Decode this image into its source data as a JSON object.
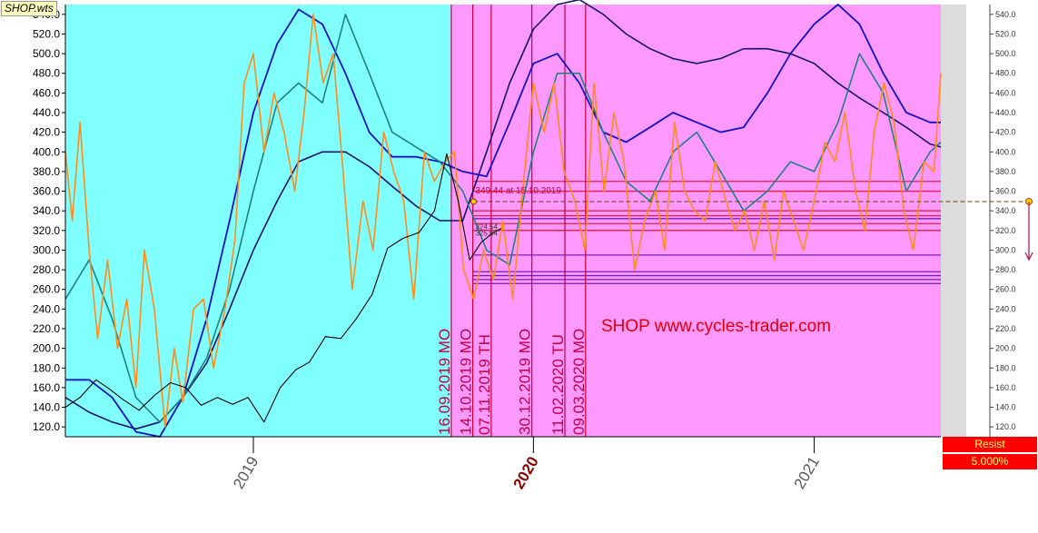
{
  "file_label": "SHOP.wts",
  "watermark": "SHOP www.cycles-trader.com",
  "resist_label": "Resist",
  "resist_value": "5.000%",
  "price_marker": "349.44 at 15.10.2019",
  "small_labels": [
    "324.54",
    "325.64"
  ],
  "colors": {
    "past_bg": "#80ffff",
    "future_bg": "#ff99ff",
    "price": "#000000",
    "cycle_orange": "#ff8c1a",
    "cycle_teal": "#208080",
    "cycle_blue": "#1010c8",
    "cycle_navy": "#101070",
    "event_line": "#c00040",
    "level_red": "#e0204a",
    "level_purple": "#7020c0",
    "resist": "#ff0000"
  },
  "chart_data": {
    "type": "line",
    "title": "",
    "xlabel": "",
    "ylabel": "",
    "ylim": [
      110,
      550
    ],
    "xlim": [
      "2018-05-01",
      "2021-06-15"
    ],
    "grid": false,
    "yticks": [
      120,
      140,
      160,
      180,
      200,
      220,
      240,
      260,
      280,
      300,
      320,
      340,
      360,
      380,
      400,
      420,
      440,
      460,
      480,
      500,
      520,
      540
    ],
    "ytick_labels": [
      "120.0",
      "140.0",
      "160.0",
      "180.0",
      "200.0",
      "220.0",
      "240.0",
      "260.0",
      "280.0",
      "300.0",
      "320.0",
      "340.0",
      "360.0",
      "380.0",
      "400.0",
      "420.0",
      "440.0",
      "460.0",
      "480.0",
      "500.0",
      "520.0",
      "540.0"
    ],
    "right_ytick_labels": [
      "120.0",
      "140.0",
      "160.0",
      "180.0",
      "200.0",
      "220.0",
      "240.0",
      "260.0",
      "280.0",
      "300.0",
      "320.0",
      "340.0",
      "360.0",
      "380.0",
      "400.0",
      "420.0",
      "440.0",
      "460.0",
      "480.0",
      "500.0",
      "520.0",
      "540.0"
    ],
    "xticks": [
      {
        "date": "2019-01-01",
        "label": "2019",
        "highlight": false
      },
      {
        "date": "2020-01-01",
        "label": "2020",
        "highlight": true
      },
      {
        "date": "2021-01-01",
        "label": "2021",
        "highlight": false
      }
    ],
    "forecast_start": "2019-09-16",
    "event_lines": [
      {
        "date": "2019-09-16",
        "label": "16.09.2019 MO"
      },
      {
        "date": "2019-10-14",
        "label": "14.10.2019 MO"
      },
      {
        "date": "2019-11-07",
        "label": "07.11.2019 TH"
      },
      {
        "date": "2019-12-30",
        "label": "30.12.2019 MO"
      },
      {
        "date": "2020-02-11",
        "label": "11.02.2020 TU"
      },
      {
        "date": "2020-03-09",
        "label": "09.03.2020 MO"
      }
    ],
    "levels_red": [
      370,
      360,
      340,
      335,
      327,
      320
    ],
    "levels_purple": [
      332,
      295,
      278,
      274,
      270,
      266
    ],
    "price_marker": {
      "date": "2019-10-15",
      "value": 349.44
    },
    "price_series": {
      "name": "",
      "x": [
        "2018-05-01",
        "2018-05-20",
        "2018-06-10",
        "2018-06-25",
        "2018-07-15",
        "2018-08-05",
        "2018-08-25",
        "2018-09-15",
        "2018-10-05",
        "2018-10-25",
        "2018-11-15",
        "2018-12-05",
        "2018-12-25",
        "2019-01-15",
        "2019-02-05",
        "2019-02-25",
        "2019-03-15",
        "2019-04-05",
        "2019-04-25",
        "2019-05-15",
        "2019-06-05",
        "2019-06-25",
        "2019-07-15",
        "2019-08-05",
        "2019-08-25",
        "2019-09-10",
        "2019-09-25",
        "2019-10-10",
        "2019-10-25",
        "2019-11-10",
        "2019-11-20"
      ],
      "values": [
        140,
        150,
        168,
        160,
        148,
        137,
        152,
        165,
        160,
        142,
        150,
        143,
        150,
        125,
        160,
        178,
        186,
        212,
        210,
        230,
        255,
        302,
        312,
        318,
        340,
        398,
        350,
        290,
        308,
        318,
        322
      ]
    },
    "cycle_orange": {
      "name": "",
      "x": [
        "2018-05-01",
        "2018-05-10",
        "2018-05-20",
        "2018-06-01",
        "2018-06-12",
        "2018-06-25",
        "2018-07-08",
        "2018-07-20",
        "2018-08-01",
        "2018-08-12",
        "2018-08-25",
        "2018-09-08",
        "2018-09-20",
        "2018-10-01",
        "2018-10-15",
        "2018-10-28",
        "2018-11-10",
        "2018-11-25",
        "2018-12-08",
        "2018-12-20",
        "2019-01-01",
        "2019-01-15",
        "2019-01-28",
        "2019-02-10",
        "2019-02-24",
        "2019-03-08",
        "2019-03-20",
        "2019-04-02",
        "2019-04-15",
        "2019-04-28",
        "2019-05-10",
        "2019-05-24",
        "2019-06-06",
        "2019-06-20",
        "2019-07-03",
        "2019-07-16",
        "2019-07-29",
        "2019-08-12",
        "2019-08-25",
        "2019-09-08",
        "2019-09-20",
        "2019-10-02",
        "2019-10-15",
        "2019-10-28",
        "2019-11-10",
        "2019-11-22",
        "2019-12-05",
        "2019-12-18",
        "2020-01-01",
        "2020-01-15",
        "2020-01-28",
        "2020-02-10",
        "2020-02-24",
        "2020-03-08",
        "2020-03-20",
        "2020-04-02",
        "2020-04-15",
        "2020-04-28",
        "2020-05-12",
        "2020-05-25",
        "2020-06-08",
        "2020-06-20",
        "2020-07-03",
        "2020-07-16",
        "2020-07-29",
        "2020-08-12",
        "2020-08-25",
        "2020-09-08",
        "2020-09-20",
        "2020-10-02",
        "2020-10-15",
        "2020-10-28",
        "2020-11-10",
        "2020-11-22",
        "2020-12-05",
        "2020-12-18",
        "2021-01-01",
        "2021-01-15",
        "2021-01-28",
        "2021-02-10",
        "2021-02-24",
        "2021-03-08",
        "2021-03-20",
        "2021-04-02",
        "2021-04-15",
        "2021-04-28",
        "2021-05-10",
        "2021-05-24",
        "2021-06-06",
        "2021-06-15"
      ],
      "values": [
        400,
        330,
        430,
        300,
        210,
        290,
        200,
        250,
        160,
        300,
        240,
        120,
        200,
        145,
        240,
        250,
        180,
        240,
        310,
        470,
        500,
        400,
        460,
        420,
        360,
        440,
        540,
        470,
        500,
        380,
        260,
        350,
        300,
        420,
        380,
        350,
        250,
        400,
        370,
        390,
        400,
        280,
        250,
        300,
        270,
        330,
        250,
        360,
        470,
        420,
        470,
        380,
        350,
        300,
        470,
        360,
        440,
        390,
        280,
        330,
        360,
        300,
        430,
        360,
        340,
        330,
        390,
        350,
        320,
        340,
        300,
        350,
        290,
        360,
        330,
        300,
        350,
        410,
        390,
        440,
        360,
        320,
        420,
        470,
        430,
        340,
        300,
        390,
        380,
        480
      ]
    },
    "cycle_teal": {
      "name": "",
      "x": [
        "2018-05-01",
        "2018-06-01",
        "2018-07-01",
        "2018-08-01",
        "2018-09-01",
        "2018-10-01",
        "2018-11-01",
        "2018-12-01",
        "2019-01-01",
        "2019-02-01",
        "2019-03-01",
        "2019-04-01",
        "2019-05-01",
        "2019-06-01",
        "2019-07-01",
        "2019-08-01",
        "2019-09-01",
        "2019-10-01",
        "2019-11-01",
        "2019-12-01",
        "2020-01-01",
        "2020-02-01",
        "2020-03-01",
        "2020-04-01",
        "2020-05-01",
        "2020-06-01",
        "2020-07-01",
        "2020-08-01",
        "2020-09-01",
        "2020-10-01",
        "2020-11-01",
        "2020-12-01",
        "2021-01-01",
        "2021-02-01",
        "2021-03-01",
        "2021-04-01",
        "2021-05-01",
        "2021-06-01",
        "2021-06-15"
      ],
      "values": [
        250,
        290,
        230,
        150,
        125,
        150,
        190,
        260,
        360,
        450,
        470,
        450,
        540,
        480,
        420,
        405,
        390,
        360,
        300,
        285,
        400,
        480,
        480,
        420,
        370,
        350,
        400,
        420,
        380,
        340,
        360,
        390,
        380,
        430,
        500,
        460,
        360,
        400,
        410
      ]
    },
    "cycle_blue": {
      "name": "",
      "x": [
        "2018-05-01",
        "2018-06-01",
        "2018-07-01",
        "2018-08-01",
        "2018-09-01",
        "2018-10-01",
        "2018-11-01",
        "2018-12-01",
        "2019-01-01",
        "2019-02-01",
        "2019-03-01",
        "2019-04-01",
        "2019-05-01",
        "2019-06-01",
        "2019-07-01",
        "2019-08-01",
        "2019-09-01",
        "2019-10-01",
        "2019-11-01",
        "2019-12-01",
        "2020-01-01",
        "2020-02-01",
        "2020-03-01",
        "2020-04-01",
        "2020-05-01",
        "2020-06-01",
        "2020-07-01",
        "2020-08-01",
        "2020-09-01",
        "2020-10-01",
        "2020-11-01",
        "2020-12-01",
        "2021-01-01",
        "2021-02-01",
        "2021-03-01",
        "2021-04-01",
        "2021-05-01",
        "2021-06-01",
        "2021-06-15"
      ],
      "values": [
        168,
        168,
        150,
        115,
        110,
        150,
        230,
        330,
        440,
        510,
        545,
        530,
        480,
        420,
        395,
        395,
        390,
        380,
        375,
        430,
        490,
        500,
        470,
        420,
        410,
        425,
        440,
        430,
        420,
        425,
        460,
        500,
        530,
        550,
        530,
        480,
        440,
        430,
        430
      ]
    },
    "cycle_navy": {
      "name": "",
      "x": [
        "2018-05-01",
        "2018-06-01",
        "2018-07-01",
        "2018-08-01",
        "2018-09-01",
        "2018-10-01",
        "2018-11-01",
        "2018-12-01",
        "2019-01-01",
        "2019-02-01",
        "2019-03-01",
        "2019-04-01",
        "2019-05-01",
        "2019-06-01",
        "2019-07-01",
        "2019-08-01",
        "2019-09-01",
        "2019-10-01",
        "2019-11-01",
        "2019-12-01",
        "2020-01-01",
        "2020-02-01",
        "2020-03-01",
        "2020-04-01",
        "2020-05-01",
        "2020-06-01",
        "2020-07-01",
        "2020-08-01",
        "2020-09-01",
        "2020-10-01",
        "2020-11-01",
        "2020-12-01",
        "2021-01-01",
        "2021-02-01",
        "2021-03-01",
        "2021-04-01",
        "2021-05-01",
        "2021-06-01",
        "2021-06-15"
      ],
      "values": [
        150,
        135,
        125,
        118,
        125,
        150,
        185,
        240,
        300,
        350,
        390,
        400,
        400,
        385,
        365,
        345,
        330,
        330,
        400,
        470,
        525,
        550,
        555,
        540,
        520,
        505,
        495,
        490,
        495,
        505,
        505,
        500,
        490,
        470,
        455,
        440,
        425,
        408,
        405
      ]
    }
  }
}
